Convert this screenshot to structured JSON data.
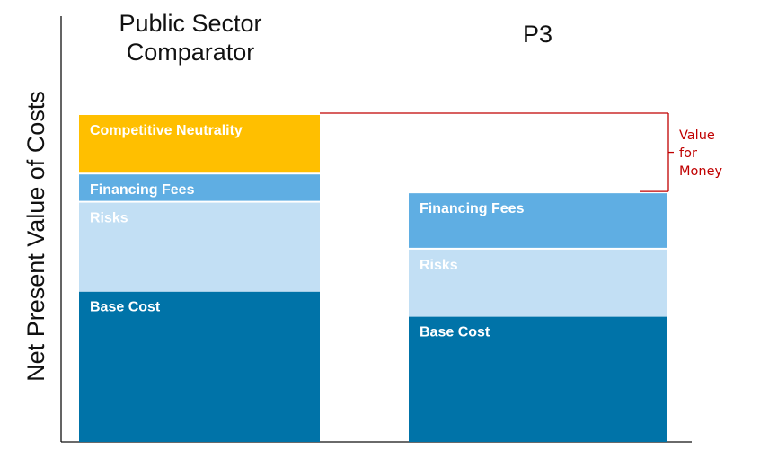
{
  "chart_data": {
    "type": "bar",
    "stacked": true,
    "ylabel": "Net Present Value of Costs",
    "xlabel": "",
    "columns": [
      {
        "header": [
          "Public Sector",
          "Comparator"
        ],
        "segments": [
          {
            "label": "Base Cost",
            "value": 48,
            "color": "#0073a8"
          },
          {
            "label": "Risks",
            "value": 29,
            "color": "#c2dff4"
          },
          {
            "label": "Financing Fees",
            "value": 9,
            "color": "#5faee3"
          },
          {
            "label": "Competitive Neutrality",
            "value": 19,
            "color": "#ffbf00"
          }
        ]
      },
      {
        "header": [
          "P3"
        ],
        "segments": [
          {
            "label": "Base Cost",
            "value": 40,
            "color": "#0073a8"
          },
          {
            "label": "Risks",
            "value": 22,
            "color": "#c2dff4"
          },
          {
            "label": "Financing Fees",
            "value": 18,
            "color": "#5faee3"
          }
        ]
      }
    ],
    "annotation": {
      "lines": [
        "Value",
        "for",
        "Money"
      ],
      "color": "#c00000"
    },
    "ylim": [
      0,
      105
    ],
    "grid": false,
    "legend": "none"
  }
}
